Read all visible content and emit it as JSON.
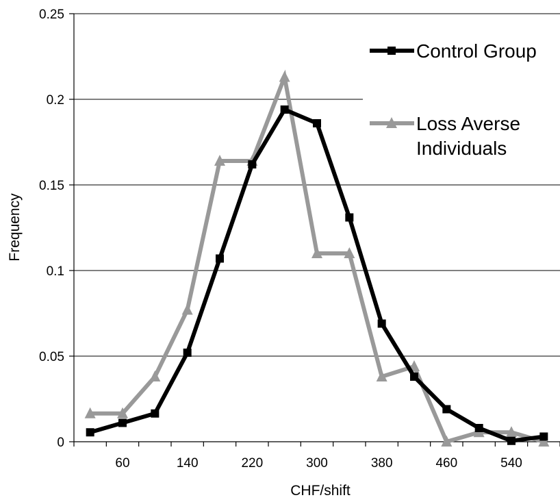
{
  "chart_data": {
    "type": "line",
    "x": [
      20,
      60,
      100,
      140,
      180,
      220,
      260,
      300,
      340,
      380,
      420,
      460,
      500,
      540,
      580
    ],
    "x_tick_labels": [
      "60",
      "140",
      "220",
      "300",
      "380",
      "460",
      "540"
    ],
    "x_tick_label_values": [
      60,
      140,
      220,
      300,
      380,
      460,
      540
    ],
    "y_tick_labels": [
      "0",
      "0.05",
      "0.1",
      "0.15",
      "0.2",
      "0.25"
    ],
    "y_tick_values": [
      0,
      0.05,
      0.1,
      0.15,
      0.2,
      0.25
    ],
    "xlim": [
      0,
      600
    ],
    "ylim": [
      0,
      0.25
    ],
    "xlabel": "CHF/shift",
    "ylabel": "Frequency",
    "grid": "horizontal",
    "legend_position": "top-right",
    "series": [
      {
        "name": "Control Group",
        "legend_lines": [
          "Control Group"
        ],
        "color": "#000000",
        "marker": "square",
        "values": [
          0.0055,
          0.011,
          0.0165,
          0.052,
          0.107,
          0.162,
          0.194,
          0.186,
          0.131,
          0.069,
          0.038,
          0.019,
          0.008,
          0.0005,
          0.003
        ]
      },
      {
        "name": "Loss Averse Individuals",
        "legend_lines": [
          "Loss Averse",
          "Individuals"
        ],
        "color": "#999999",
        "marker": "triangle",
        "values": [
          0.0165,
          0.0165,
          0.038,
          0.077,
          0.164,
          0.164,
          0.213,
          0.11,
          0.11,
          0.038,
          0.044,
          0.0,
          0.0055,
          0.0055,
          0.0
        ]
      }
    ]
  }
}
